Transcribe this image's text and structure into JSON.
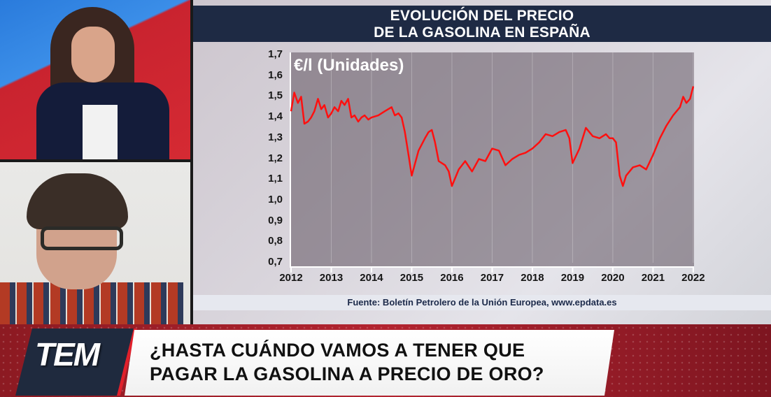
{
  "panels": {
    "host_camera": {
      "label": "Presentadora en plató"
    },
    "guest_camera": {
      "label": "Invitado en videollamada"
    }
  },
  "chart_panel": {
    "title_line1": "EVOLUCIÓN DEL PRECIO",
    "title_line2": "DE LA GASOLINA EN ESPAÑA",
    "unit_label": "€/l (Unidades)",
    "source": "Fuente: Boletín Petrolero de la Unión Europea, www.epdata.es"
  },
  "chart_data": {
    "type": "line",
    "title": "EVOLUCIÓN DEL PRECIO DE LA GASOLINA EN ESPAÑA",
    "xlabel": "",
    "ylabel": "€/l (Unidades)",
    "ylim": [
      0.7,
      1.7
    ],
    "yticks": [
      "1,7",
      "1,6",
      "1,5",
      "1,4",
      "1,3",
      "1,2",
      "1,1",
      "1,0",
      "0,9",
      "0,8",
      "0,7"
    ],
    "xticks": [
      "2012",
      "2013",
      "2014",
      "2015",
      "2016",
      "2017",
      "2018",
      "2019",
      "2020",
      "2021",
      "2022"
    ],
    "grid": "vertical",
    "line_color": "#ff1010",
    "series": [
      {
        "name": "Precio gasolina (€/l)",
        "x": [
          2012.0,
          2012.08,
          2012.17,
          2012.25,
          2012.33,
          2012.42,
          2012.5,
          2012.58,
          2012.67,
          2012.75,
          2012.83,
          2012.92,
          2013.0,
          2013.08,
          2013.17,
          2013.25,
          2013.33,
          2013.42,
          2013.5,
          2013.58,
          2013.67,
          2013.75,
          2013.83,
          2013.92,
          2014.0,
          2014.17,
          2014.33,
          2014.5,
          2014.58,
          2014.67,
          2014.75,
          2014.83,
          2014.92,
          2015.0,
          2015.17,
          2015.33,
          2015.42,
          2015.5,
          2015.58,
          2015.67,
          2015.75,
          2015.83,
          2015.92,
          2016.0,
          2016.17,
          2016.33,
          2016.5,
          2016.67,
          2016.83,
          2017.0,
          2017.17,
          2017.33,
          2017.5,
          2017.67,
          2017.83,
          2018.0,
          2018.17,
          2018.33,
          2018.5,
          2018.67,
          2018.83,
          2018.92,
          2019.0,
          2019.17,
          2019.33,
          2019.5,
          2019.67,
          2019.83,
          2019.92,
          2020.0,
          2020.08,
          2020.17,
          2020.25,
          2020.33,
          2020.5,
          2020.67,
          2020.83,
          2021.0,
          2021.17,
          2021.33,
          2021.5,
          2021.67,
          2021.75,
          2021.83,
          2021.92,
          2022.0
        ],
        "values": [
          1.43,
          1.52,
          1.47,
          1.5,
          1.37,
          1.38,
          1.4,
          1.43,
          1.49,
          1.44,
          1.46,
          1.4,
          1.42,
          1.45,
          1.43,
          1.48,
          1.46,
          1.49,
          1.4,
          1.41,
          1.38,
          1.4,
          1.41,
          1.39,
          1.4,
          1.41,
          1.43,
          1.45,
          1.41,
          1.42,
          1.4,
          1.33,
          1.22,
          1.12,
          1.24,
          1.3,
          1.33,
          1.34,
          1.28,
          1.19,
          1.18,
          1.17,
          1.14,
          1.07,
          1.15,
          1.19,
          1.14,
          1.2,
          1.19,
          1.25,
          1.24,
          1.17,
          1.2,
          1.22,
          1.23,
          1.25,
          1.28,
          1.32,
          1.31,
          1.33,
          1.34,
          1.3,
          1.18,
          1.25,
          1.35,
          1.31,
          1.3,
          1.32,
          1.3,
          1.3,
          1.28,
          1.12,
          1.07,
          1.12,
          1.16,
          1.17,
          1.15,
          1.22,
          1.3,
          1.36,
          1.41,
          1.45,
          1.5,
          1.47,
          1.49,
          1.55
        ]
      }
    ]
  },
  "lower_third": {
    "logo": "TEM",
    "headline_line1": "¿HASTA CUÁNDO VAMOS A TENER QUE",
    "headline_line2": "PAGAR LA GASOLINA A PRECIO DE ORO?"
  },
  "colors": {
    "title_band": "#1e2a44",
    "line": "#ff1010",
    "brand_red": "#c1222d",
    "logo_box": "#1f2a3e"
  }
}
